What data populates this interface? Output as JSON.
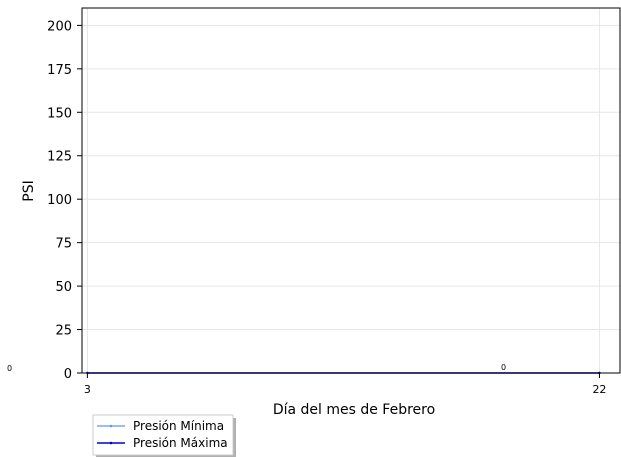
{
  "chart_data": {
    "type": "line",
    "x": [
      3,
      22
    ],
    "series": [
      {
        "name": "Presión Mínima",
        "values": [
          0,
          0
        ],
        "color": "#6495ed"
      },
      {
        "name": "Presión Máxima",
        "values": [
          0,
          0
        ],
        "color": "#0000cd"
      }
    ],
    "xlabel": "Día del mes de  Febrero",
    "ylabel": "PSI",
    "xticks": [
      "3",
      "22"
    ],
    "yticks": [
      0,
      25,
      50,
      75,
      100,
      125,
      150,
      175,
      200
    ],
    "ylim": [
      0,
      210
    ],
    "xlim": [
      2.8,
      22.8
    ],
    "grid": true,
    "legend_position": "bottom-left, outside below plot",
    "annotations": [
      "0",
      "0"
    ]
  }
}
